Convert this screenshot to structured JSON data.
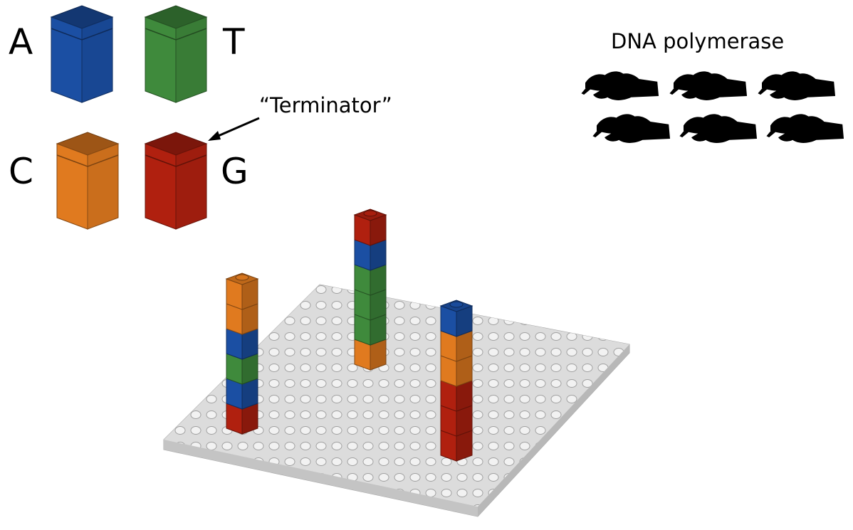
{
  "legend": {
    "adenine": {
      "letter": "A",
      "color": "#1b4fa3"
    },
    "thymine": {
      "letter": "T",
      "color": "#3f8a3c"
    },
    "cytosine": {
      "letter": "C",
      "color": "#e07a1f"
    },
    "guanine": {
      "letter": "G",
      "color": "#b0200f"
    }
  },
  "terminator_label": "“Terminator”",
  "polymerase_label": "DNA polymerase",
  "polymerase_hand_count": 6,
  "baseplate_color": "#d9d9d9",
  "strands": [
    {
      "name": "strand-left",
      "bases_bottom_to_top": [
        "G",
        "A",
        "T",
        "A",
        "C",
        "C"
      ]
    },
    {
      "name": "strand-middle",
      "bases_bottom_to_top": [
        "C",
        "T",
        "T",
        "T",
        "A",
        "G"
      ]
    },
    {
      "name": "strand-right",
      "bases_bottom_to_top": [
        "G",
        "G",
        "G",
        "C",
        "C",
        "A"
      ]
    }
  ]
}
